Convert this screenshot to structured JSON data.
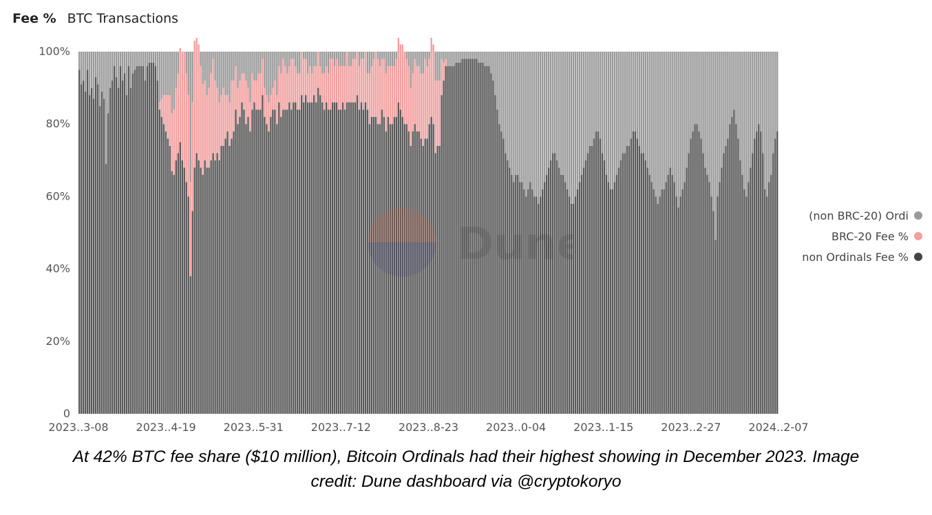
{
  "tabs": [
    {
      "label": "Fee %",
      "active": true
    },
    {
      "label": "BTC Transactions",
      "active": false
    }
  ],
  "watermark": {
    "text": "Dune"
  },
  "caption": {
    "line1": "At 42% BTC fee share ($10 million), Bitcoin Ordinals had their highest showing in December 2023. Image",
    "line2": "credit: Dune dashboard via @cryptokoryo"
  },
  "colors": {
    "non_brc20_ordinals": "#9a9a9a",
    "brc20": "#f2a0a0",
    "non_ordinals": "#595959"
  },
  "chart_data": {
    "type": "bar",
    "stacked": true,
    "ylim": [
      0,
      100
    ],
    "y_ticks": [
      "0",
      "20%",
      "40%",
      "60%",
      "80%",
      "100%"
    ],
    "x_tick_labels": [
      "2023..3-08",
      "2023..4-19",
      "2023..5-31",
      "2023..7-12",
      "2023..8-23",
      "2023..0-04",
      "2023..1-15",
      "2023..2-27",
      "2024..2-07"
    ],
    "legend_position": "right",
    "series_order_bottom_to_top": [
      "non Ordinals Fee %",
      "BRC-20 Fee %",
      "(non BRC-20) Ordi"
    ],
    "series": [
      {
        "name": "(non BRC-20) Ordi",
        "color": "#9a9a9a",
        "note": "remainder to 100%"
      },
      {
        "name": "BRC-20 Fee %",
        "color": "#f2a0a0",
        "values": [
          0,
          0,
          0,
          0,
          0,
          0,
          0,
          0,
          0,
          0,
          0,
          0,
          0,
          0,
          0,
          0,
          0,
          0,
          0,
          0,
          0,
          0,
          0,
          0,
          0,
          0,
          0,
          0,
          0,
          0,
          0,
          0,
          0,
          0,
          0,
          0,
          0,
          0,
          0,
          2,
          5,
          8,
          10,
          12,
          14,
          16,
          18,
          20,
          22,
          26,
          30,
          32,
          30,
          28,
          26,
          30,
          35,
          34,
          32,
          28,
          25,
          22,
          20,
          22,
          24,
          26,
          22,
          18,
          16,
          14,
          16,
          12,
          10,
          12,
          16,
          14,
          12,
          10,
          10,
          8,
          10,
          12,
          8,
          8,
          10,
          6,
          8,
          10,
          10,
          10,
          8,
          8,
          8,
          6,
          6,
          8,
          8,
          10,
          12,
          14,
          12,
          10,
          10,
          14,
          12,
          10,
          10,
          10,
          12,
          12,
          10,
          8,
          10,
          8,
          8,
          10,
          10,
          8,
          8,
          10,
          10,
          10,
          14,
          12,
          10,
          12,
          12,
          12,
          10,
          12,
          14,
          10,
          10,
          12,
          12,
          12,
          12,
          12,
          14,
          14,
          10,
          14,
          14,
          16,
          18,
          18,
          16,
          14,
          16,
          16,
          14,
          16,
          16,
          14,
          16,
          18,
          18,
          20,
          20,
          18,
          18,
          16,
          16,
          18,
          18,
          18,
          18,
          20,
          22,
          20,
          18,
          22,
          22,
          20,
          18,
          18,
          10,
          5,
          2,
          0,
          0,
          0,
          0,
          0,
          0,
          0,
          0,
          0,
          0,
          0,
          0,
          0,
          0,
          0,
          0,
          0,
          0,
          0,
          0,
          0,
          0,
          0,
          0,
          0,
          0,
          0,
          0,
          0,
          0,
          0,
          0,
          0,
          0,
          0,
          0,
          0,
          0,
          0,
          0,
          0,
          0,
          0,
          0,
          0,
          0,
          0,
          0,
          0,
          0,
          0,
          0,
          0,
          0,
          0,
          0,
          0,
          0,
          0,
          0,
          0,
          0,
          0,
          0,
          0,
          0,
          0,
          0,
          0,
          0,
          0,
          0,
          0,
          0,
          0,
          0,
          0,
          0,
          0,
          0,
          0,
          0,
          0,
          0,
          0,
          0,
          0,
          0,
          0,
          0,
          0,
          0,
          0,
          0,
          0,
          0,
          0,
          0,
          0,
          0,
          0,
          0,
          0,
          0,
          0,
          0,
          0,
          0,
          0,
          0,
          0,
          0,
          0,
          0,
          0,
          0,
          0,
          0,
          0,
          0,
          0,
          0,
          0,
          0,
          0,
          0,
          0,
          0,
          0,
          0,
          0,
          0,
          0,
          0,
          0,
          0,
          0,
          0,
          0,
          0,
          0,
          0,
          0,
          0,
          0,
          0,
          0,
          0,
          0,
          0,
          0,
          0,
          0,
          0,
          0,
          0,
          0,
          0,
          0,
          0,
          0,
          0,
          0,
          0,
          0,
          0
        ]
      },
      {
        "name": "non Ordinals Fee %",
        "color": "#595959",
        "values": [
          95,
          91,
          92,
          89,
          95,
          88,
          90,
          87,
          93,
          91,
          85,
          89,
          87,
          69,
          83,
          90,
          92,
          96,
          93,
          90,
          96,
          92,
          94,
          88,
          96,
          90,
          94,
          95,
          96,
          96,
          96,
          96,
          92,
          96,
          97,
          97,
          97,
          96,
          92,
          84,
          82,
          80,
          78,
          76,
          74,
          67,
          66,
          70,
          72,
          75,
          70,
          68,
          64,
          60,
          38,
          56,
          68,
          72,
          70,
          68,
          66,
          70,
          68,
          68,
          70,
          72,
          70,
          72,
          70,
          74,
          74,
          76,
          78,
          74,
          76,
          78,
          84,
          80,
          82,
          86,
          84,
          80,
          82,
          78,
          84,
          86,
          84,
          84,
          84,
          88,
          82,
          80,
          78,
          82,
          84,
          84,
          80,
          86,
          82,
          84,
          84,
          84,
          86,
          84,
          86,
          86,
          84,
          84,
          88,
          86,
          88,
          86,
          86,
          86,
          88,
          86,
          90,
          88,
          86,
          84,
          86,
          84,
          84,
          86,
          86,
          86,
          84,
          84,
          86,
          84,
          86,
          86,
          86,
          86,
          86,
          88,
          84,
          86,
          84,
          86,
          84,
          80,
          82,
          82,
          82,
          80,
          80,
          84,
          82,
          78,
          82,
          80,
          80,
          82,
          82,
          86,
          84,
          82,
          80,
          80,
          78,
          74,
          78,
          80,
          78,
          78,
          76,
          74,
          76,
          76,
          80,
          82,
          80,
          72,
          74,
          74,
          88,
          92,
          96,
          96,
          96,
          96,
          96,
          97,
          97,
          97,
          98,
          98,
          98,
          98,
          98,
          98,
          98,
          98,
          97,
          97,
          97,
          96,
          96,
          96,
          94,
          92,
          88,
          84,
          80,
          78,
          76,
          72,
          70,
          68,
          66,
          64,
          66,
          66,
          64,
          64,
          62,
          60,
          62,
          64,
          62,
          60,
          60,
          58,
          60,
          62,
          64,
          66,
          68,
          70,
          72,
          72,
          70,
          68,
          66,
          66,
          64,
          62,
          60,
          58,
          58,
          60,
          62,
          64,
          66,
          68,
          70,
          72,
          74,
          74,
          76,
          78,
          78,
          76,
          72,
          70,
          66,
          64,
          62,
          62,
          64,
          66,
          68,
          70,
          72,
          72,
          74,
          74,
          76,
          78,
          78,
          76,
          74,
          72,
          72,
          70,
          68,
          66,
          64,
          62,
          60,
          58,
          60,
          62,
          62,
          64,
          66,
          68,
          66,
          64,
          60,
          57,
          60,
          62,
          64,
          68,
          72,
          76,
          78,
          80,
          80,
          78,
          76,
          72,
          68,
          66,
          64,
          60,
          56,
          48,
          60,
          64,
          68,
          72,
          74,
          76,
          80,
          82,
          84,
          80,
          76,
          70,
          66,
          62,
          60,
          64,
          68,
          72,
          76,
          78,
          80,
          78,
          72,
          62,
          60,
          64,
          66,
          72,
          76,
          78
        ]
      }
    ]
  },
  "legend": {
    "items": [
      {
        "label": "(non BRC-20) Ordi",
        "color": "#9a9a9a"
      },
      {
        "label": "BRC-20 Fee %",
        "color": "#f2a0a0"
      },
      {
        "label": "non Ordinals Fee %",
        "color": "#595959"
      }
    ]
  }
}
